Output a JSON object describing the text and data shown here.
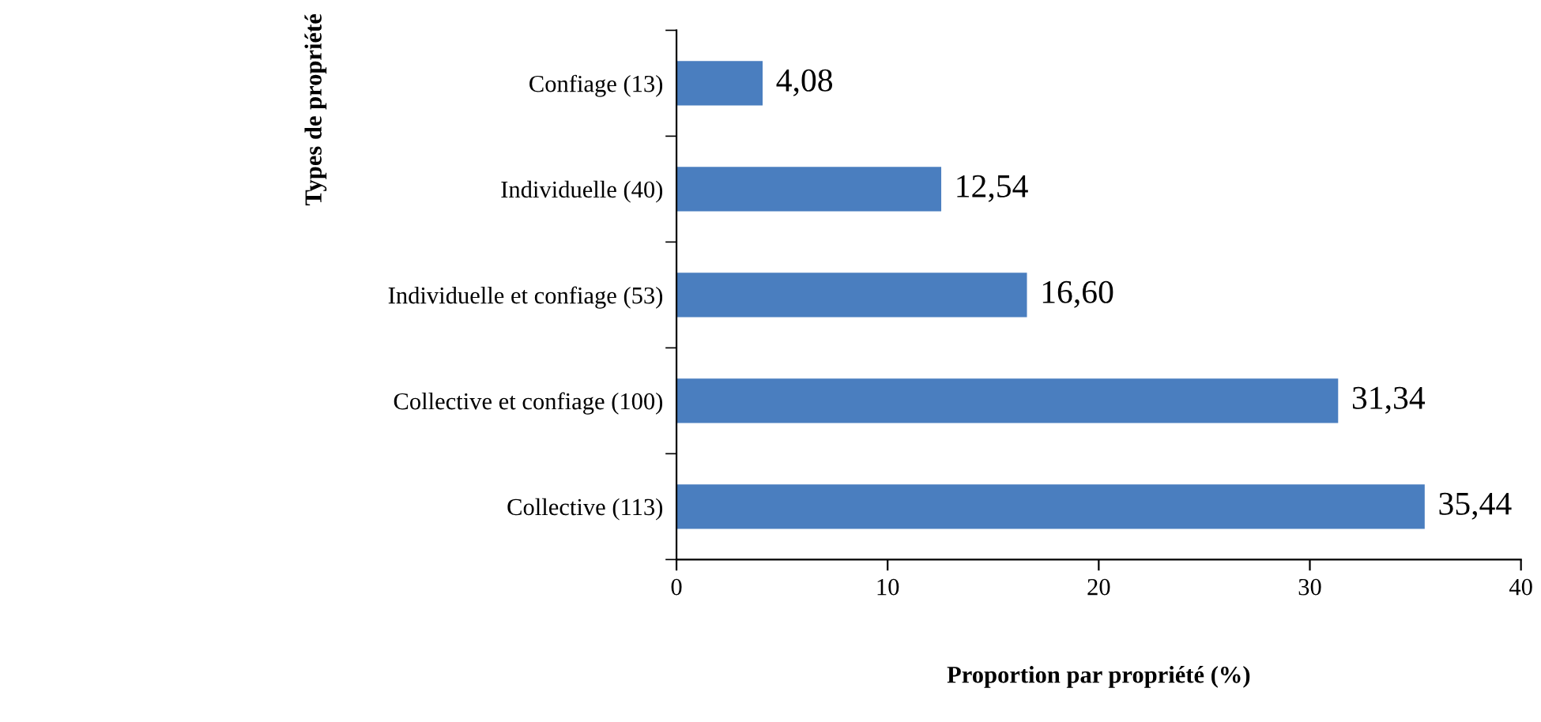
{
  "chart_data": {
    "type": "bar",
    "orientation": "horizontal",
    "xlabel": "Proportion par propriété (%)",
    "ylabel": "Types de propriété",
    "categories": [
      "Confiage (13)",
      "Individuelle (40)",
      "Individuelle et confiage (53)",
      "Collective et confiage (100)",
      "Collective (113)"
    ],
    "values": [
      4.08,
      12.54,
      16.6,
      31.34,
      35.44
    ],
    "value_labels": [
      "4,08",
      "12,54",
      "16,60",
      "31,34",
      "35,44"
    ],
    "color": "#4a7ebf",
    "xlim": [
      0,
      40
    ],
    "xticks": [
      0,
      10,
      20,
      30,
      40
    ],
    "grid": false,
    "legend": false
  }
}
